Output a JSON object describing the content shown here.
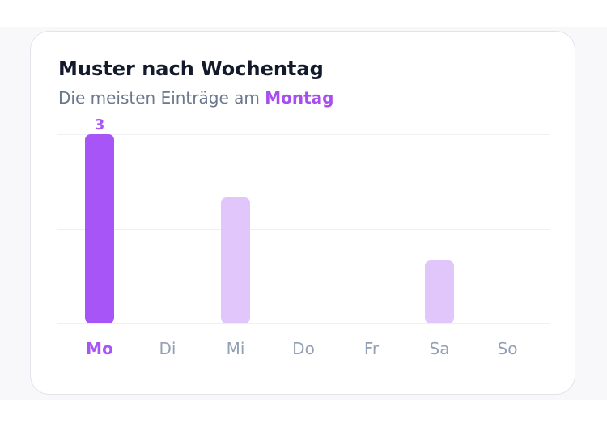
{
  "card": {
    "title": "Muster nach Wochentag",
    "subtitle_prefix": "Die meisten Einträge am",
    "subtitle_highlight": "Montag"
  },
  "colors": {
    "accent": "#a855f7",
    "accent_light": "#e0c6fb",
    "title": "#131a2c",
    "subtitle": "#6b778c",
    "label": "#94a0b3",
    "grid": "#eef0f4"
  },
  "chart_data": {
    "type": "bar",
    "categories": [
      "Mo",
      "Di",
      "Mi",
      "Do",
      "Fr",
      "Sa",
      "So"
    ],
    "values": [
      3,
      0,
      2,
      0,
      0,
      1,
      0
    ],
    "highlight_index": 0,
    "value_labels": [
      "3",
      "",
      "",
      "",
      "",
      "",
      ""
    ],
    "ylim": [
      0,
      3
    ],
    "grid": true,
    "title": "",
    "xlabel": "",
    "ylabel": ""
  }
}
